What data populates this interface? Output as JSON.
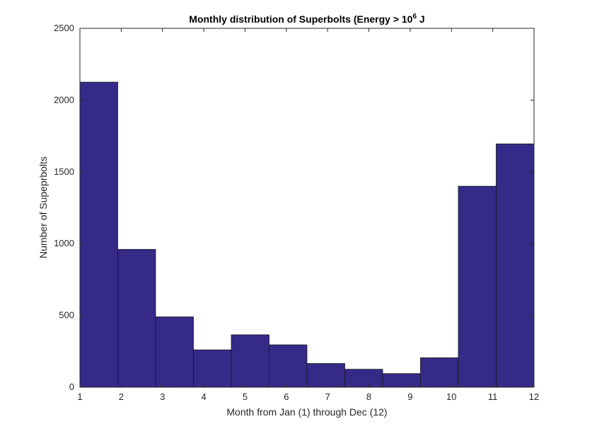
{
  "chart_data": {
    "type": "bar",
    "title": "Monthly distribution of Superbolts (Energy > 10",
    "title_superscript": "6",
    "title_suffix": " J",
    "xlabel": "Month from Jan (1) through Dec (12)",
    "ylabel": "Number of Supeprbolts",
    "xlim": [
      1,
      12
    ],
    "ylim": [
      0,
      2500
    ],
    "xticks": [
      "1",
      "2",
      "3",
      "4",
      "5",
      "6",
      "7",
      "8",
      "9",
      "10",
      "11",
      "12"
    ],
    "yticks": [
      "0",
      "500",
      "1000",
      "1500",
      "2000",
      "2500"
    ],
    "bin_count": 12,
    "values": [
      2125,
      960,
      490,
      260,
      365,
      295,
      165,
      125,
      95,
      205,
      1400,
      1695
    ],
    "grid": false,
    "legend": "none"
  },
  "colors": {
    "bar_fill": "#352a87",
    "bar_edge": "#1a1a1a",
    "axis": "#262626",
    "background": "#ffffff"
  }
}
